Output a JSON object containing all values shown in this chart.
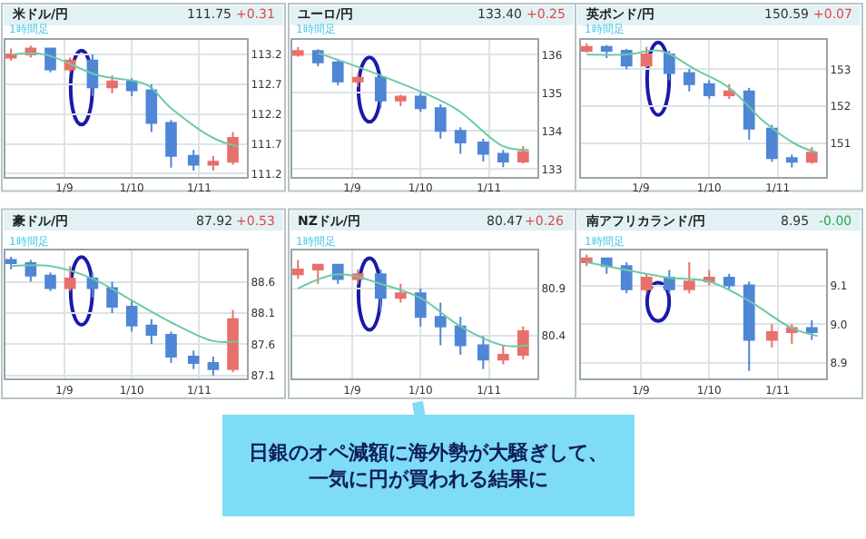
{
  "chart_data": [
    {
      "type": "candlestick",
      "title": "米ドル/円",
      "subtitle": "111.75",
      "annotations": [
        "+0.31",
        "1時間足"
      ],
      "x": [
        "--01-08T05:00",
        "--01-08T12:00",
        "--01-08T19:00",
        "--01-09T02:00",
        "--01-09T10:00",
        "--01-09T17:00",
        "--01-10T00:00",
        "--01-10T07:00",
        "--01-10T14:00",
        "--01-10T22:00",
        "--01-11T05:00",
        "--01-11T12:00"
      ],
      "ohlc": [
        [
          113.15,
          113.3,
          113.1,
          113.2
        ],
        [
          113.2,
          113.35,
          113.15,
          113.3
        ],
        [
          113.3,
          113.3,
          112.9,
          112.95
        ],
        [
          112.95,
          113.15,
          112.9,
          113.1
        ],
        [
          113.1,
          113.2,
          112.5,
          112.65
        ],
        [
          112.65,
          112.85,
          112.55,
          112.75
        ],
        [
          112.75,
          112.8,
          112.5,
          112.6
        ],
        [
          112.6,
          112.7,
          111.9,
          112.05
        ],
        [
          112.05,
          112.1,
          111.3,
          111.5
        ],
        [
          111.5,
          111.6,
          111.25,
          111.35
        ],
        [
          111.35,
          111.5,
          111.25,
          111.4
        ],
        [
          111.4,
          111.9,
          111.35,
          111.8
        ]
      ],
      "series": [
        {
          "type": "line",
          "color": "#6ccaa6",
          "x": [
            "--01-08T05:00",
            "--01-08T17:00",
            "--01-09T12:00",
            "--01-10T05:00",
            "--01-10T14:00",
            "--01-11T05:00",
            "--01-11T14:00"
          ],
          "values": [
            113.2,
            113.2,
            112.85,
            112.7,
            112.3,
            111.8,
            111.65
          ]
        }
      ],
      "xlim": [
        "--01-08T03:00",
        "--01-11T17:00"
      ],
      "xticks": [
        {
          "value": "--01-09",
          "label": "1/9"
        },
        {
          "value": "--01-10",
          "label": "1/10"
        },
        {
          "value": "--01-11",
          "label": "1/11"
        }
      ],
      "ylim": [
        111.15,
        113.45
      ],
      "yticks": [
        113.2,
        112.7,
        112.2,
        111.7,
        111.2
      ],
      "grid": true
    },
    {
      "type": "candlestick",
      "title": "ユーロ/円",
      "subtitle": "133.40",
      "annotations": [
        "+0.25",
        "1時間足"
      ],
      "x": [
        "--01-08T05:00",
        "--01-08T12:00",
        "--01-08T19:00",
        "--01-09T02:00",
        "--01-09T10:00",
        "--01-09T17:00",
        "--01-10T00:00",
        "--01-10T07:00",
        "--01-10T14:00",
        "--01-10T22:00",
        "--01-11T05:00",
        "--01-11T12:00"
      ],
      "ohlc": [
        [
          136.0,
          136.2,
          135.95,
          136.1
        ],
        [
          136.1,
          136.15,
          135.7,
          135.8
        ],
        [
          135.8,
          135.85,
          135.2,
          135.3
        ],
        [
          135.3,
          135.5,
          135.15,
          135.4
        ],
        [
          135.4,
          135.5,
          134.6,
          134.8
        ],
        [
          134.8,
          134.95,
          134.65,
          134.9
        ],
        [
          134.9,
          135.0,
          134.5,
          134.6
        ],
        [
          134.6,
          134.7,
          133.8,
          134.0
        ],
        [
          134.0,
          134.1,
          133.4,
          133.7
        ],
        [
          133.7,
          133.8,
          133.2,
          133.4
        ],
        [
          133.4,
          133.5,
          133.05,
          133.2
        ],
        [
          133.2,
          133.6,
          133.15,
          133.45
        ]
      ],
      "series": [
        {
          "type": "line",
          "color": "#6ccaa6",
          "x": [
            "--01-08T12:00",
            "--01-09T12:00",
            "--01-10T12:00",
            "--01-11T05:00",
            "--01-11T14:00"
          ],
          "values": [
            136.05,
            135.4,
            134.6,
            133.6,
            133.5
          ]
        }
      ],
      "xlim": [
        "--01-08T03:00",
        "--01-11T17:00"
      ],
      "xticks": [
        {
          "value": "--01-09",
          "label": "1/9"
        },
        {
          "value": "--01-10",
          "label": "1/10"
        },
        {
          "value": "--01-11",
          "label": "1/11"
        }
      ],
      "ylim": [
        132.8,
        136.4
      ],
      "yticks": [
        136,
        135,
        134,
        133
      ],
      "grid": true
    },
    {
      "type": "candlestick",
      "title": "英ポンド/円",
      "subtitle": "150.59",
      "annotations": [
        "+0.07",
        "1時間足"
      ],
      "x": [
        "--01-08T05:00",
        "--01-08T12:00",
        "--01-08T19:00",
        "--01-09T02:00",
        "--01-09T10:00",
        "--01-09T17:00",
        "--01-10T00:00",
        "--01-10T07:00",
        "--01-10T14:00",
        "--01-10T22:00",
        "--01-11T05:00",
        "--01-11T12:00"
      ],
      "ohlc": [
        [
          153.5,
          153.7,
          153.45,
          153.6
        ],
        [
          153.6,
          153.65,
          153.3,
          153.5
        ],
        [
          153.5,
          153.55,
          153.0,
          153.1
        ],
        [
          153.1,
          153.6,
          153.05,
          153.4
        ],
        [
          153.4,
          153.5,
          152.7,
          152.9
        ],
        [
          152.9,
          153.0,
          152.4,
          152.6
        ],
        [
          152.6,
          152.7,
          152.2,
          152.3
        ],
        [
          152.3,
          152.6,
          152.2,
          152.4
        ],
        [
          152.4,
          152.5,
          151.1,
          151.4
        ],
        [
          151.4,
          151.5,
          150.5,
          150.6
        ],
        [
          150.6,
          150.7,
          150.35,
          150.5
        ],
        [
          150.5,
          150.9,
          150.45,
          150.75
        ]
      ],
      "series": [
        {
          "type": "line",
          "color": "#6ccaa6",
          "x": [
            "--01-08T05:00",
            "--01-08T19:00",
            "--01-09T07:00",
            "--01-09T19:00",
            "--01-10T07:00",
            "--01-10T19:00",
            "--01-11T07:00",
            "--01-11T14:00"
          ],
          "values": [
            153.4,
            153.4,
            153.5,
            153.0,
            152.5,
            151.6,
            150.95,
            150.75
          ]
        }
      ],
      "xlim": [
        "--01-08T03:00",
        "--01-11T17:00"
      ],
      "xticks": [
        {
          "value": "--01-09",
          "label": "1/9"
        },
        {
          "value": "--01-10",
          "label": "1/10"
        },
        {
          "value": "--01-11",
          "label": "1/11"
        }
      ],
      "ylim": [
        150.1,
        153.8
      ],
      "yticks": [
        153,
        152,
        151
      ],
      "grid": true
    },
    {
      "type": "candlestick",
      "title": "豪ドル/円",
      "subtitle": "87.92",
      "annotations": [
        "+0.53",
        "1時間足"
      ],
      "x": [
        "--01-08T05:00",
        "--01-08T12:00",
        "--01-08T19:00",
        "--01-09T02:00",
        "--01-09T10:00",
        "--01-09T17:00",
        "--01-10T00:00",
        "--01-10T07:00",
        "--01-10T14:00",
        "--01-10T22:00",
        "--01-11T05:00",
        "--01-11T12:00"
      ],
      "ohlc": [
        [
          88.95,
          89.0,
          88.8,
          88.9
        ],
        [
          88.9,
          88.95,
          88.6,
          88.7
        ],
        [
          88.7,
          88.75,
          88.45,
          88.5
        ],
        [
          88.5,
          88.85,
          88.45,
          88.65
        ],
        [
          88.65,
          88.75,
          88.35,
          88.5
        ],
        [
          88.5,
          88.6,
          88.1,
          88.2
        ],
        [
          88.2,
          88.3,
          87.8,
          87.9
        ],
        [
          87.9,
          88.0,
          87.6,
          87.75
        ],
        [
          87.75,
          87.8,
          87.3,
          87.4
        ],
        [
          87.4,
          87.5,
          87.2,
          87.3
        ],
        [
          87.3,
          87.4,
          87.1,
          87.2
        ],
        [
          87.2,
          88.15,
          87.15,
          88.0
        ]
      ],
      "series": [
        {
          "type": "line",
          "color": "#6ccaa6",
          "x": [
            "--01-08T05:00",
            "--01-08T19:00",
            "--01-09T10:00",
            "--01-10T00:00",
            "--01-10T14:00",
            "--01-11T05:00",
            "--01-11T14:00"
          ],
          "values": [
            88.85,
            88.85,
            88.65,
            88.3,
            87.95,
            87.65,
            87.65
          ]
        }
      ],
      "xlim": [
        "--01-08T03:00",
        "--01-11T17:00"
      ],
      "xticks": [
        {
          "value": "--01-09",
          "label": "1/9"
        },
        {
          "value": "--01-10",
          "label": "1/10"
        },
        {
          "value": "--01-11",
          "label": "1/11"
        }
      ],
      "ylim": [
        87.05,
        89.1
      ],
      "yticks": [
        88.6,
        88.1,
        87.6,
        87.1
      ],
      "grid": true
    },
    {
      "type": "candlestick",
      "title": "NZドル/円",
      "subtitle": "80.47",
      "annotations": [
        "+0.26",
        "1時間足",
        "日銀のオペ減額に海外勢が大騒ぎして、一気に円が買われる結果に"
      ],
      "x": [
        "--01-08T05:00",
        "--01-08T12:00",
        "--01-08T19:00",
        "--01-09T02:00",
        "--01-09T10:00",
        "--01-09T17:00",
        "--01-10T00:00",
        "--01-10T07:00",
        "--01-10T14:00",
        "--01-10T22:00",
        "--01-11T05:00",
        "--01-11T12:00"
      ],
      "ohlc": [
        [
          81.05,
          81.2,
          81.0,
          81.1
        ],
        [
          81.1,
          81.15,
          80.95,
          81.15
        ],
        [
          81.15,
          81.15,
          80.95,
          81.0
        ],
        [
          81.0,
          81.1,
          80.95,
          81.05
        ],
        [
          81.05,
          81.1,
          80.65,
          80.8
        ],
        [
          80.8,
          80.95,
          80.75,
          80.85
        ],
        [
          80.85,
          80.9,
          80.5,
          80.6
        ],
        [
          80.6,
          80.75,
          80.3,
          80.5
        ],
        [
          80.5,
          80.6,
          80.2,
          80.3
        ],
        [
          80.3,
          80.4,
          80.05,
          80.15
        ],
        [
          80.15,
          80.3,
          80.1,
          80.2
        ],
        [
          80.2,
          80.5,
          80.15,
          80.45
        ]
      ],
      "series": [
        {
          "type": "line",
          "color": "#6ccaa6",
          "x": [
            "--01-08T05:00",
            "--01-08T19:00",
            "--01-09T10:00",
            "--01-10T00:00",
            "--01-10T14:00",
            "--01-11T05:00",
            "--01-11T14:00"
          ],
          "values": [
            80.9,
            81.05,
            80.95,
            80.8,
            80.5,
            80.3,
            80.3
          ]
        }
      ],
      "xlim": [
        "--01-08T03:00",
        "--01-11T17:00"
      ],
      "xticks": [
        {
          "value": "--01-09",
          "label": "1/9"
        },
        {
          "value": "--01-10",
          "label": "1/10"
        },
        {
          "value": "--01-11",
          "label": "1/11"
        }
      ],
      "ylim": [
        79.95,
        81.3
      ],
      "yticks": [
        80.9,
        80.4
      ],
      "grid": true
    },
    {
      "type": "candlestick",
      "title": "南アフリカランド/円",
      "subtitle": "8.95",
      "annotations": [
        "-0.00",
        "1時間足"
      ],
      "x": [
        "--01-08T05:00",
        "--01-08T12:00",
        "--01-08T19:00",
        "--01-09T02:00",
        "--01-09T10:00",
        "--01-09T17:00",
        "--01-10T00:00",
        "--01-10T07:00",
        "--01-10T14:00",
        "--01-10T22:00",
        "--01-11T05:00",
        "--01-11T12:00"
      ],
      "ohlc": [
        [
          9.16,
          9.18,
          9.15,
          9.17
        ],
        [
          9.17,
          9.17,
          9.13,
          9.15
        ],
        [
          9.15,
          9.16,
          9.08,
          9.09
        ],
        [
          9.09,
          9.13,
          9.08,
          9.12
        ],
        [
          9.12,
          9.14,
          9.08,
          9.09
        ],
        [
          9.09,
          9.16,
          9.08,
          9.11
        ],
        [
          9.11,
          9.14,
          9.1,
          9.12
        ],
        [
          9.12,
          9.13,
          9.09,
          9.1
        ],
        [
          9.1,
          9.11,
          8.88,
          8.96
        ],
        [
          8.96,
          9.0,
          8.94,
          8.98
        ],
        [
          8.98,
          9.0,
          8.95,
          8.99
        ],
        [
          8.99,
          9.01,
          8.96,
          8.98
        ]
      ],
      "series": [
        {
          "type": "line",
          "color": "#6ccaa6",
          "x": [
            "--01-08T05:00",
            "--01-08T19:00",
            "--01-09T10:00",
            "--01-10T00:00",
            "--01-10T14:00",
            "--01-11T05:00",
            "--01-11T14:00"
          ],
          "values": [
            9.16,
            9.14,
            9.12,
            9.11,
            9.06,
            8.99,
            8.97
          ]
        }
      ],
      "xlim": [
        "--01-08T03:00",
        "--01-11T17:00"
      ],
      "xticks": [
        {
          "value": "--01-09",
          "label": "1/9"
        },
        {
          "value": "--01-10",
          "label": "1/10"
        },
        {
          "value": "--01-11",
          "label": "1/11"
        }
      ],
      "ylim": [
        8.86,
        9.19
      ],
      "yticks": [
        9.1,
        {
          "value": 9.0,
          "label": "9.0"
        },
        8.9
      ],
      "grid": true
    }
  ]
}
